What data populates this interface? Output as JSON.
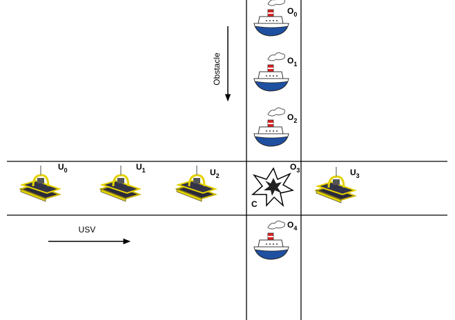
{
  "arrows": {
    "obstacle": "Obstacle",
    "usv": "USV"
  },
  "obstacles": [
    {
      "letter": "O",
      "index": "0"
    },
    {
      "letter": "O",
      "index": "1"
    },
    {
      "letter": "O",
      "index": "2"
    },
    {
      "letter": "O",
      "index": "3"
    },
    {
      "letter": "O",
      "index": "4"
    }
  ],
  "usvs": [
    {
      "letter": "U",
      "index": "0"
    },
    {
      "letter": "U",
      "index": "1"
    },
    {
      "letter": "U",
      "index": "2"
    },
    {
      "letter": "U",
      "index": "3"
    }
  ],
  "collision": "C"
}
